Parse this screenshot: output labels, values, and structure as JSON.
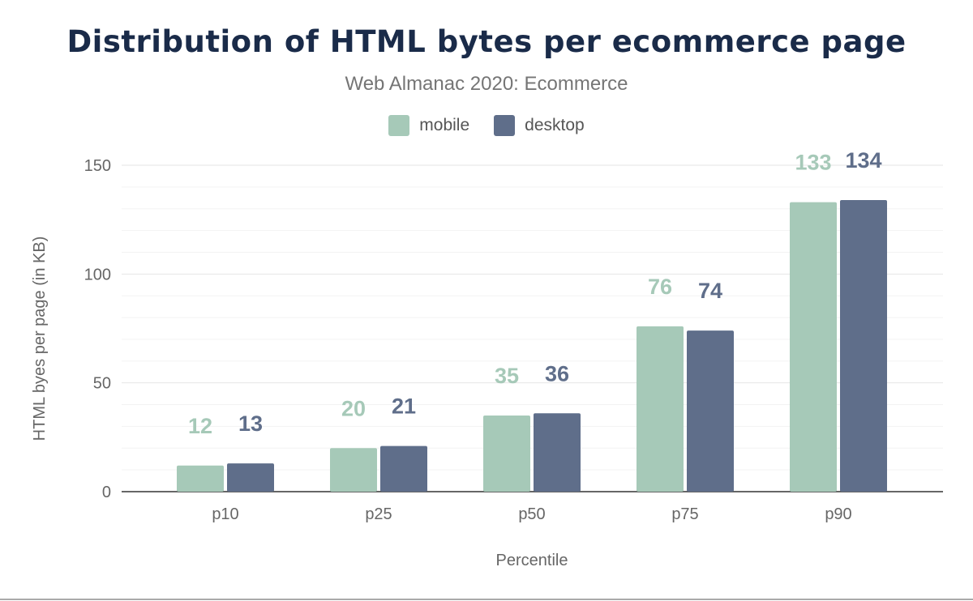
{
  "chart_data": {
    "type": "bar",
    "title": "Distribution of HTML bytes per ecommerce page",
    "subtitle": "Web Almanac 2020: Ecommerce",
    "xlabel": "Percentile",
    "ylabel": "HTML byes per page (in KB)",
    "categories": [
      "p10",
      "p25",
      "p50",
      "p75",
      "p90"
    ],
    "series": [
      {
        "name": "mobile",
        "color": "#a6c9b8",
        "values": [
          12,
          20,
          35,
          76,
          133
        ]
      },
      {
        "name": "desktop",
        "color": "#5f6e8a",
        "values": [
          13,
          21,
          36,
          74,
          134
        ]
      }
    ],
    "ylim": [
      0,
      150
    ],
    "yticks": [
      0,
      50,
      100,
      150
    ],
    "grid": true,
    "legend": "top-center",
    "data_labels": true
  }
}
